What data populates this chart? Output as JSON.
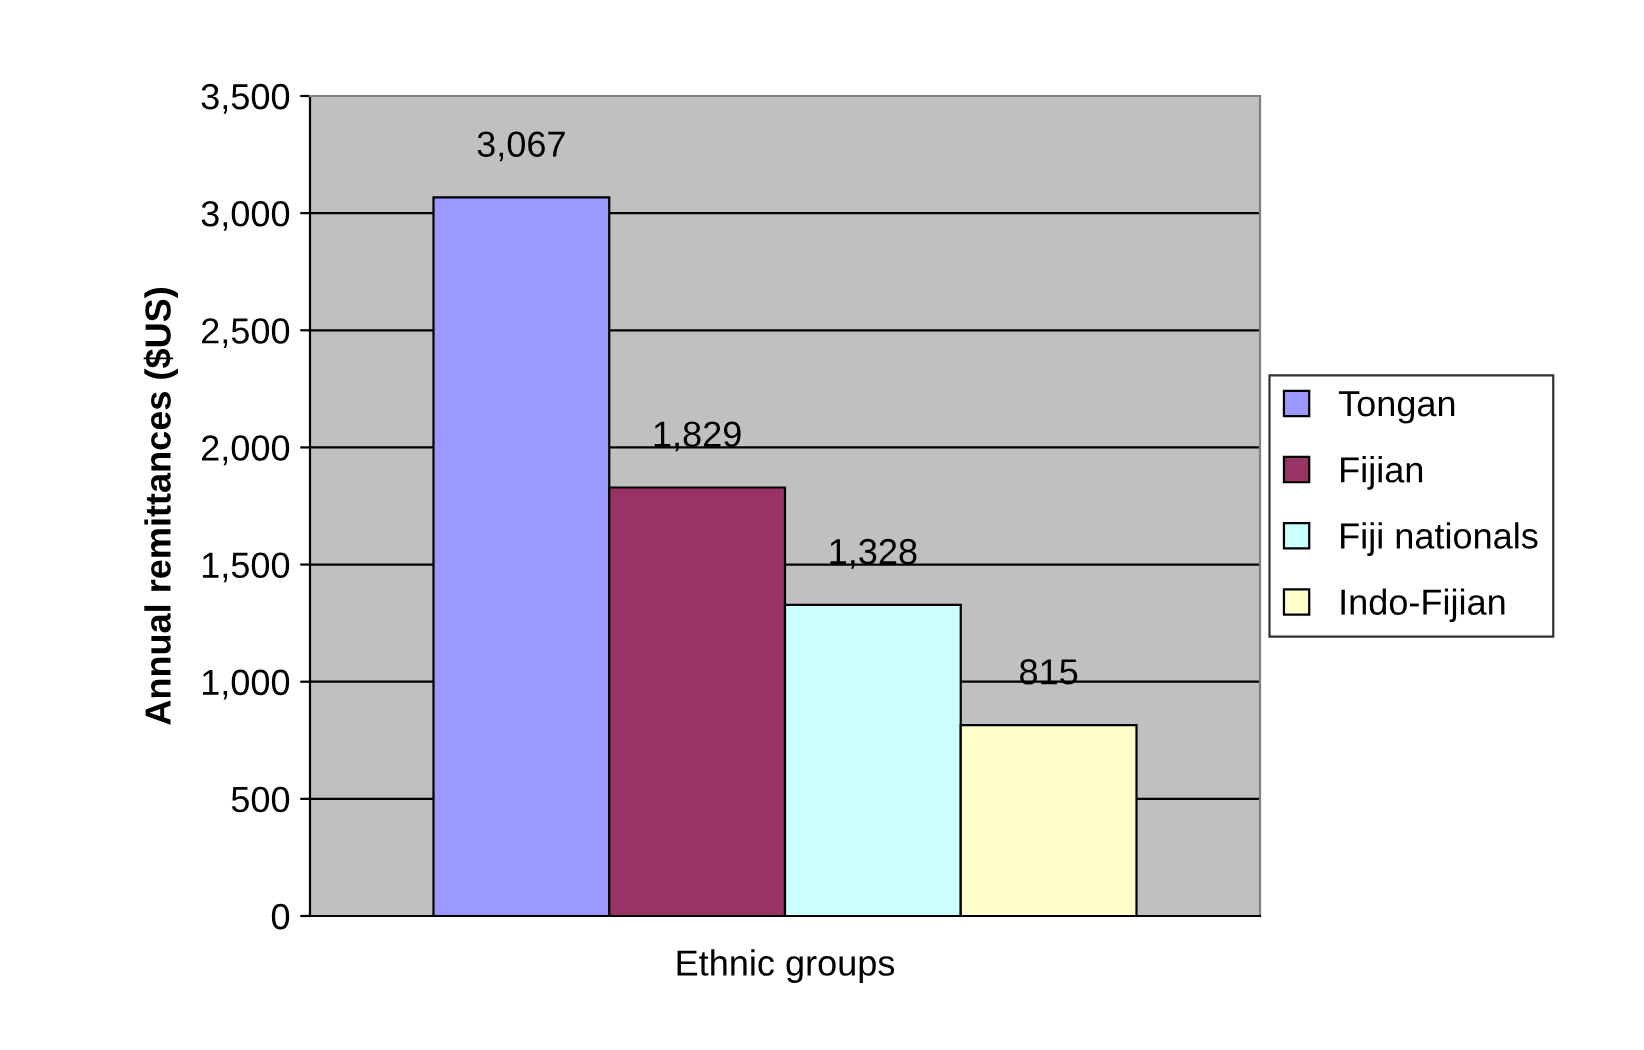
{
  "chart_data": {
    "type": "bar",
    "ylabel": "Annual remittances ($US)",
    "categories": [
      "Ethnic groups"
    ],
    "series": [
      {
        "name": "Tongan",
        "color": "#9999ff",
        "values": [
          3067
        ],
        "value_labels": [
          "3,067"
        ]
      },
      {
        "name": "Fijian",
        "color": "#993366",
        "values": [
          1829
        ],
        "value_labels": [
          "1,829"
        ]
      },
      {
        "name": "Fiji nationals",
        "color": "#ccffff",
        "values": [
          1328
        ],
        "value_labels": [
          "1,328"
        ]
      },
      {
        "name": "Indo-Fijian",
        "color": "#ffffcc",
        "values": [
          815
        ],
        "value_labels": [
          "815"
        ]
      }
    ],
    "ylim": [
      0,
      3500
    ],
    "yticks": [
      {
        "value": 0,
        "label": "0"
      },
      {
        "value": 500,
        "label": "500"
      },
      {
        "value": 1000,
        "label": "1,000"
      },
      {
        "value": 1500,
        "label": "1,500"
      },
      {
        "value": 2000,
        "label": "2,000"
      },
      {
        "value": 2500,
        "label": "2,500"
      },
      {
        "value": 3000,
        "label": "3,000"
      },
      {
        "value": 3500,
        "label": "3,500"
      }
    ],
    "grid": "y",
    "legend": "right"
  }
}
